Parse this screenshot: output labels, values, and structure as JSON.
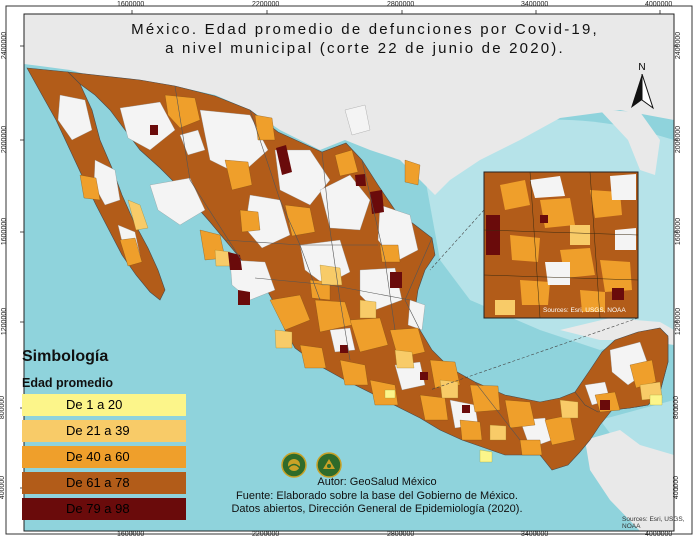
{
  "title_line1": "México. Edad promedio de defunciones por Covid-19,",
  "title_line2": "a nivel municipal (corte 22 de junio de 2020).",
  "north_label": "N",
  "x_ticks": [
    "1600000",
    "2200000",
    "2800000",
    "3400000",
    "4000000"
  ],
  "y_ticks_left": [
    "2400000",
    "2000000",
    "1600000",
    "1200000",
    "800000",
    "400000"
  ],
  "y_ticks_right": [
    "2400000",
    "2000000",
    "1600000",
    "1200000",
    "800000",
    "400000"
  ],
  "legend": {
    "title": "Simbología",
    "subtitle": "Edad promedio",
    "classes": [
      {
        "label": "De 1 a 20",
        "color": "#fcf58a"
      },
      {
        "label": "De 21 a 39",
        "color": "#f8cb68"
      },
      {
        "label": "De 40 a 60",
        "color": "#ef9f2b"
      },
      {
        "label": "De 61 a 78",
        "color": "#b25c19"
      },
      {
        "label": "De 79 a 98",
        "color": "#6a0b0b"
      }
    ]
  },
  "credits": {
    "author": "Autor: GeoSalud México",
    "source_line1": "Fuente:  Elaborado sobre la base del Gobierno de México.",
    "source_line2": "Datos abiertos, Dirección General de Epidemiología (2020)."
  },
  "inset_source": "Sources: Esri, USGS, NOAA",
  "map_source": "Sources: Esri, USGS, NOAA",
  "colors": {
    "ocean": "#8fd3dc",
    "ocean_light": "#bfe7ec",
    "land_neighbors": "#e9e9e9",
    "no_data": "#f4f4f4",
    "border": "#4a4a4a"
  }
}
